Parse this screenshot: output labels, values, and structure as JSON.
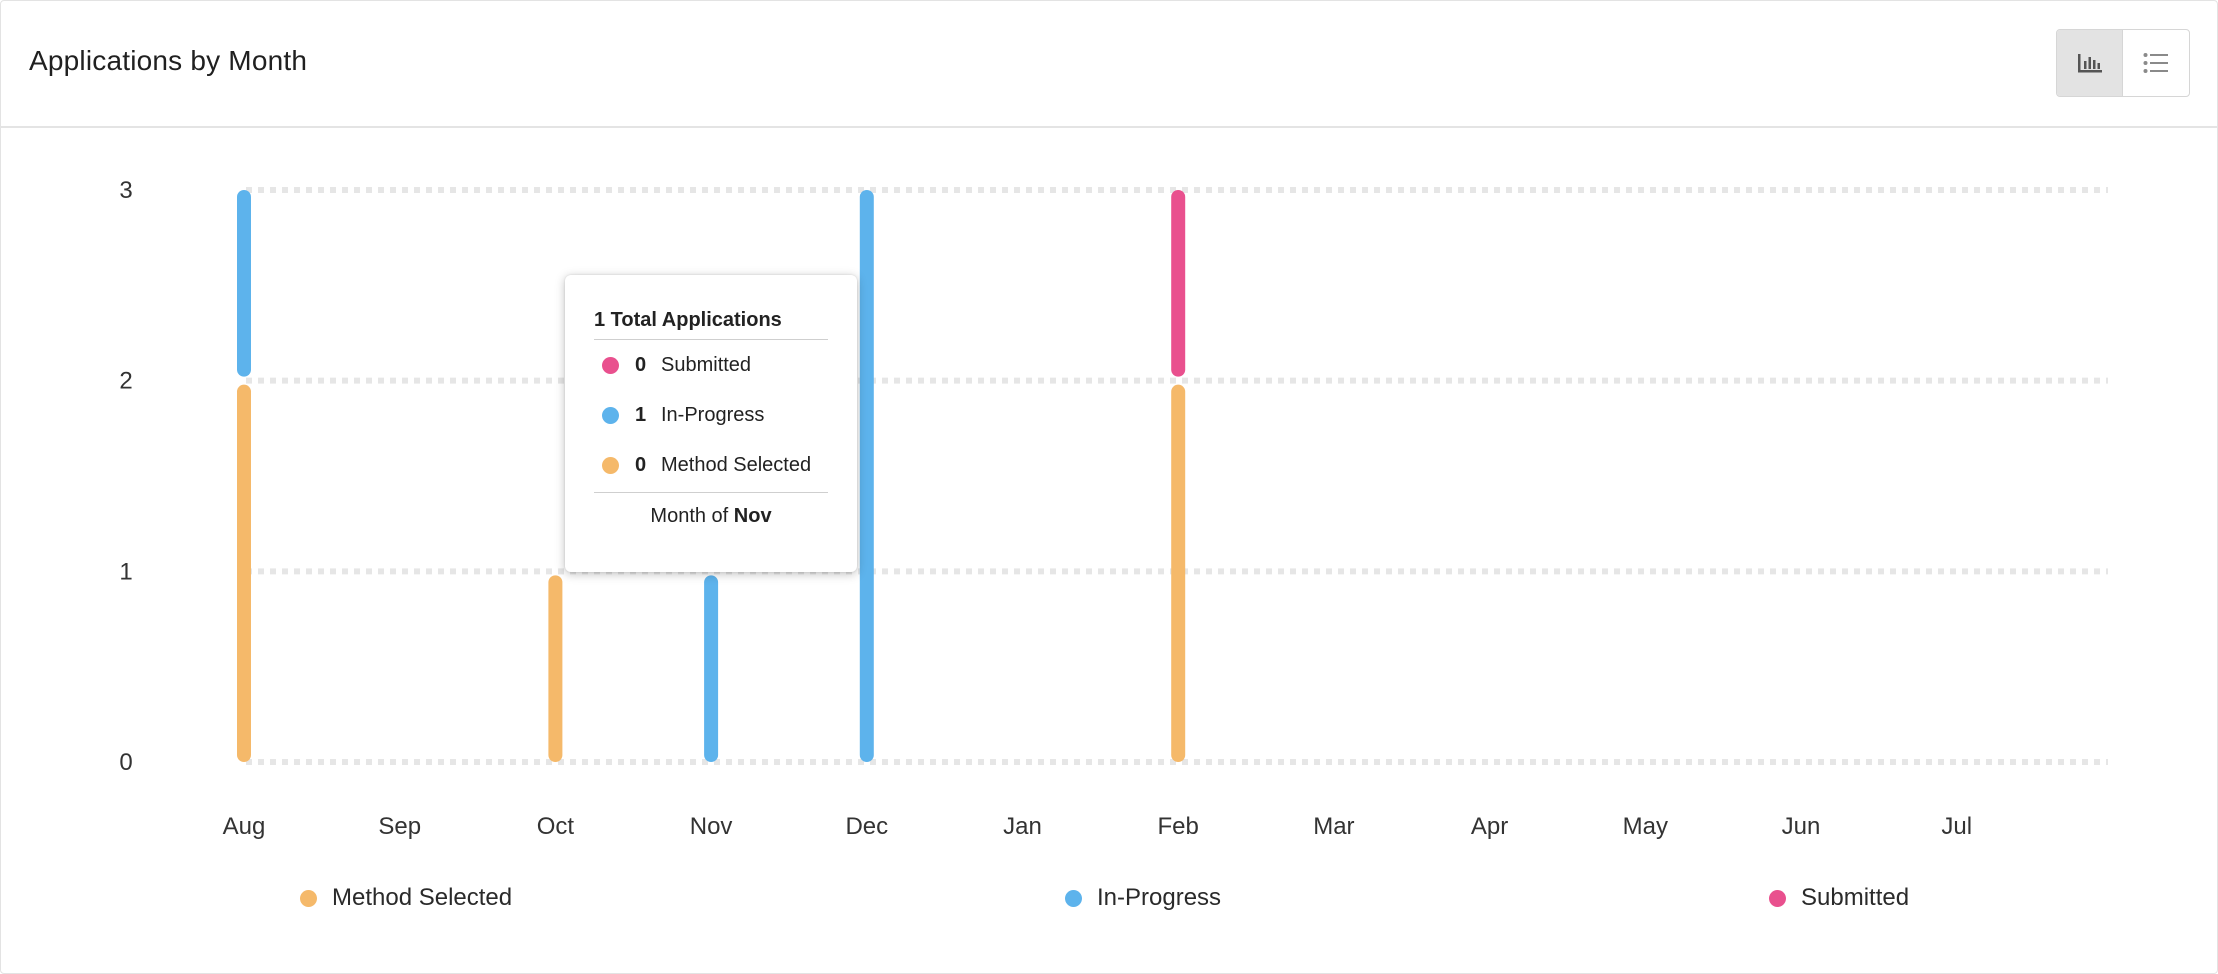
{
  "header": {
    "title": "Applications by Month",
    "chart_view_icon": "bar-chart-icon",
    "list_view_icon": "list-icon"
  },
  "colors": {
    "method_selected": "#f5b96a",
    "in_progress": "#5db3ec",
    "submitted": "#e9508e",
    "grid": "#e6e6e6"
  },
  "chart_data": {
    "type": "bar",
    "stacked": true,
    "categories": [
      "Aug",
      "Sep",
      "Oct",
      "Nov",
      "Dec",
      "Jan",
      "Feb",
      "Mar",
      "Apr",
      "May",
      "Jun",
      "Jul"
    ],
    "series": [
      {
        "name": "Method Selected",
        "values": [
          2,
          0,
          1,
          0,
          0,
          0,
          2,
          0,
          0,
          0,
          0,
          0
        ]
      },
      {
        "name": "In-Progress",
        "values": [
          1,
          0,
          0,
          1,
          3,
          0,
          0,
          0,
          0,
          0,
          0,
          0
        ]
      },
      {
        "name": "Submitted",
        "values": [
          0,
          0,
          0,
          0,
          0,
          0,
          1,
          0,
          0,
          0,
          0,
          0
        ]
      }
    ],
    "y_ticks": [
      "0",
      "1",
      "2",
      "3"
    ],
    "ylim": [
      0,
      3
    ],
    "grid": true,
    "legend_position": "bottom"
  },
  "tooltip": {
    "title": "1 Total Applications",
    "rows": [
      {
        "count": "0",
        "label": "Submitted"
      },
      {
        "count": "1",
        "label": "In-Progress"
      },
      {
        "count": "0",
        "label": "Method Selected"
      }
    ],
    "footer_prefix": "Month of ",
    "footer_month": "Nov"
  },
  "legend": [
    {
      "label": "Method Selected"
    },
    {
      "label": "In-Progress"
    },
    {
      "label": "Submitted"
    }
  ]
}
